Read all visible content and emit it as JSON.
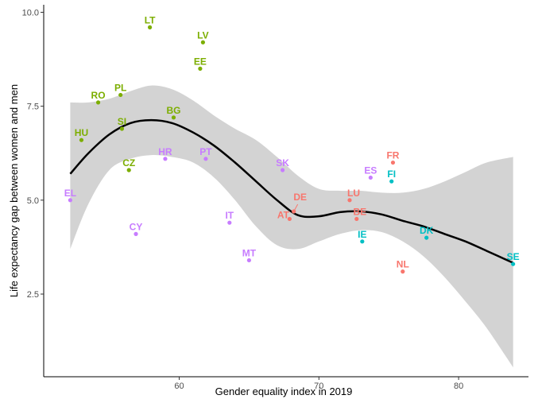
{
  "chart_data": {
    "type": "scatter",
    "title": "",
    "xlabel": "Gender equality index in 2019",
    "ylabel": "Life expectancy gap between women and men",
    "xlim": [
      50.3,
      85.0
    ],
    "ylim": [
      0.3,
      10.2
    ],
    "xticks": [
      60,
      70,
      80
    ],
    "yticks": [
      2.5,
      5.0,
      7.5,
      10.0
    ],
    "ytick_labels": [
      "2.5",
      "5.0",
      "7.5",
      "10.0"
    ],
    "grid": false,
    "legend": "none",
    "colors": {
      "green": "#7cae00",
      "purple": "#c77cff",
      "red": "#f8766d",
      "teal": "#00bfc4",
      "trend": "#000000",
      "band": "#d3d3d3"
    },
    "points": [
      {
        "label": "LT",
        "x": 57.9,
        "y": 9.6,
        "group": "green"
      },
      {
        "label": "LV",
        "x": 61.7,
        "y": 9.2,
        "group": "green"
      },
      {
        "label": "EE",
        "x": 61.5,
        "y": 8.5,
        "group": "green"
      },
      {
        "label": "RO",
        "x": 54.2,
        "y": 7.6,
        "group": "green"
      },
      {
        "label": "PL",
        "x": 55.8,
        "y": 7.8,
        "group": "green"
      },
      {
        "label": "BG",
        "x": 59.6,
        "y": 7.2,
        "group": "green"
      },
      {
        "label": "SI",
        "x": 55.9,
        "y": 6.9,
        "group": "green"
      },
      {
        "label": "HU",
        "x": 53.0,
        "y": 6.6,
        "group": "green"
      },
      {
        "label": "CZ",
        "x": 56.4,
        "y": 5.8,
        "group": "green"
      },
      {
        "label": "HR",
        "x": 59.0,
        "y": 6.1,
        "group": "purple"
      },
      {
        "label": "PT",
        "x": 61.9,
        "y": 6.1,
        "group": "purple"
      },
      {
        "label": "SK",
        "x": 67.4,
        "y": 5.8,
        "group": "purple"
      },
      {
        "label": "EL",
        "x": 52.2,
        "y": 5.0,
        "group": "purple"
      },
      {
        "label": "CY",
        "x": 56.9,
        "y": 4.1,
        "group": "purple"
      },
      {
        "label": "IT",
        "x": 63.6,
        "y": 4.4,
        "group": "purple"
      },
      {
        "label": "MT",
        "x": 65.0,
        "y": 3.4,
        "group": "purple"
      },
      {
        "label": "ES",
        "x": 73.7,
        "y": 5.6,
        "group": "purple"
      },
      {
        "label": "FR",
        "x": 75.3,
        "y": 6.0,
        "group": "red"
      },
      {
        "label": "DE",
        "x": 68.2,
        "y": 4.7,
        "group": "red"
      },
      {
        "label": "AT",
        "x": 67.9,
        "y": 4.5,
        "group": "red"
      },
      {
        "label": "LU",
        "x": 72.2,
        "y": 5.0,
        "group": "red"
      },
      {
        "label": "BE",
        "x": 72.7,
        "y": 4.5,
        "group": "red"
      },
      {
        "label": "NL",
        "x": 76.0,
        "y": 3.1,
        "group": "red"
      },
      {
        "label": "FI",
        "x": 75.2,
        "y": 5.5,
        "group": "teal"
      },
      {
        "label": "IE",
        "x": 73.1,
        "y": 3.9,
        "group": "teal"
      },
      {
        "label": "DK",
        "x": 77.7,
        "y": 4.0,
        "group": "teal"
      },
      {
        "label": "SE",
        "x": 83.9,
        "y": 3.3,
        "group": "teal"
      }
    ],
    "smooth_line": {
      "x": [
        52.2,
        53.5,
        55.0,
        56.5,
        58.0,
        59.5,
        61.0,
        62.5,
        64.0,
        65.5,
        67.0,
        68.5,
        70.0,
        71.5,
        73.0,
        74.5,
        76.0,
        77.5,
        79.0,
        80.5,
        82.0,
        83.9
      ],
      "y": [
        5.7,
        6.25,
        6.75,
        7.05,
        7.13,
        7.05,
        6.8,
        6.45,
        6.0,
        5.5,
        5.0,
        4.6,
        4.57,
        4.68,
        4.7,
        4.62,
        4.45,
        4.3,
        4.1,
        3.9,
        3.65,
        3.33
      ]
    },
    "confidence_band": {
      "x": [
        52.2,
        53.5,
        55.0,
        56.5,
        58.0,
        59.5,
        61.0,
        62.5,
        64.0,
        65.5,
        67.0,
        68.5,
        70.0,
        71.5,
        73.0,
        74.5,
        76.0,
        77.5,
        79.0,
        80.5,
        82.0,
        83.9
      ],
      "lower": [
        3.7,
        4.9,
        5.8,
        6.1,
        6.2,
        6.15,
        6.0,
        5.6,
        5.0,
        4.3,
        3.8,
        3.7,
        3.9,
        4.1,
        4.2,
        4.15,
        3.9,
        3.5,
        2.95,
        2.3,
        1.6,
        0.55
      ],
      "upper": [
        7.6,
        7.6,
        7.7,
        7.9,
        8.05,
        7.95,
        7.65,
        7.25,
        6.9,
        6.6,
        6.15,
        5.65,
        5.3,
        5.25,
        5.25,
        5.2,
        5.2,
        5.3,
        5.5,
        5.75,
        6.0,
        6.15
      ]
    }
  }
}
